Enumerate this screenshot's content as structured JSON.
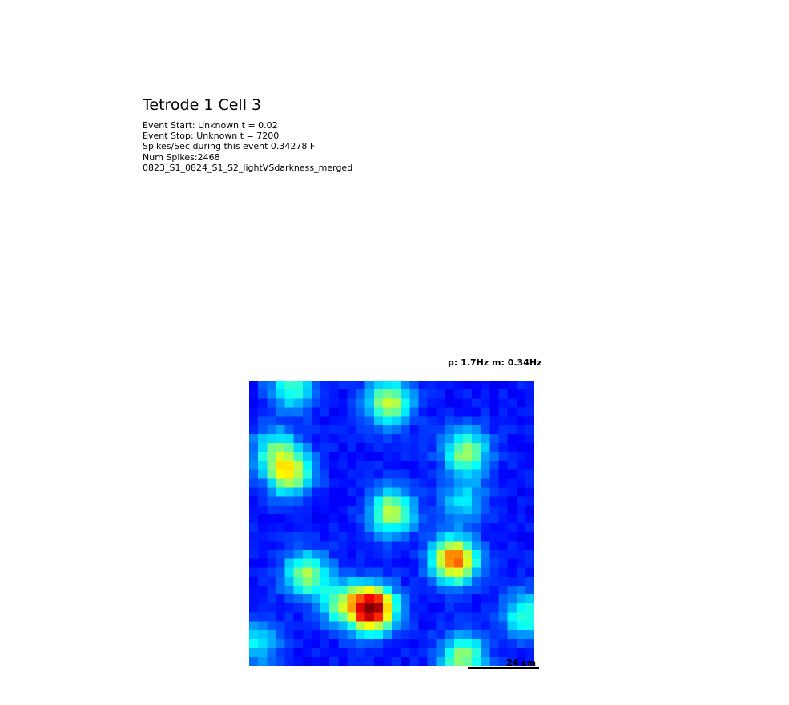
{
  "chart_data": {
    "type": "heatmap",
    "title": "Tetrode 1 Cell 3",
    "info_lines": [
      "Event Start: Unknown t = 0.02",
      "Event Stop: Unknown t = 7200",
      "Spikes/Sec during this event 0.34278 F",
      "Num Spikes:2468",
      "0823_S1_0824_S1_S2_lightVSdarkness_merged"
    ],
    "rate_label": "p: 1.7Hz m: 0.34Hz",
    "peak_rate_hz": 1.7,
    "mean_rate_hz": 0.34,
    "colormap": "jet",
    "grid_size": 32,
    "scale_bar_label": "24 cm",
    "fields": [
      {
        "x": 0.14,
        "y": 0.32,
        "amp": 0.55
      },
      {
        "x": 0.09,
        "y": 0.24,
        "amp": 0.3
      },
      {
        "x": 0.49,
        "y": 0.08,
        "amp": 0.5
      },
      {
        "x": 0.15,
        "y": 0.02,
        "amp": 0.35
      },
      {
        "x": 0.76,
        "y": 0.25,
        "amp": 0.45
      },
      {
        "x": 0.5,
        "y": 0.46,
        "amp": 0.5
      },
      {
        "x": 0.75,
        "y": 0.42,
        "amp": 0.25
      },
      {
        "x": 0.72,
        "y": 0.63,
        "amp": 0.75
      },
      {
        "x": 0.2,
        "y": 0.68,
        "amp": 0.45
      },
      {
        "x": 0.43,
        "y": 0.8,
        "amp": 1.0
      },
      {
        "x": 0.32,
        "y": 0.78,
        "amp": 0.35
      },
      {
        "x": 0.75,
        "y": 0.97,
        "amp": 0.45
      },
      {
        "x": 0.97,
        "y": 0.82,
        "amp": 0.35
      },
      {
        "x": 0.03,
        "y": 0.92,
        "amp": 0.25
      }
    ]
  }
}
